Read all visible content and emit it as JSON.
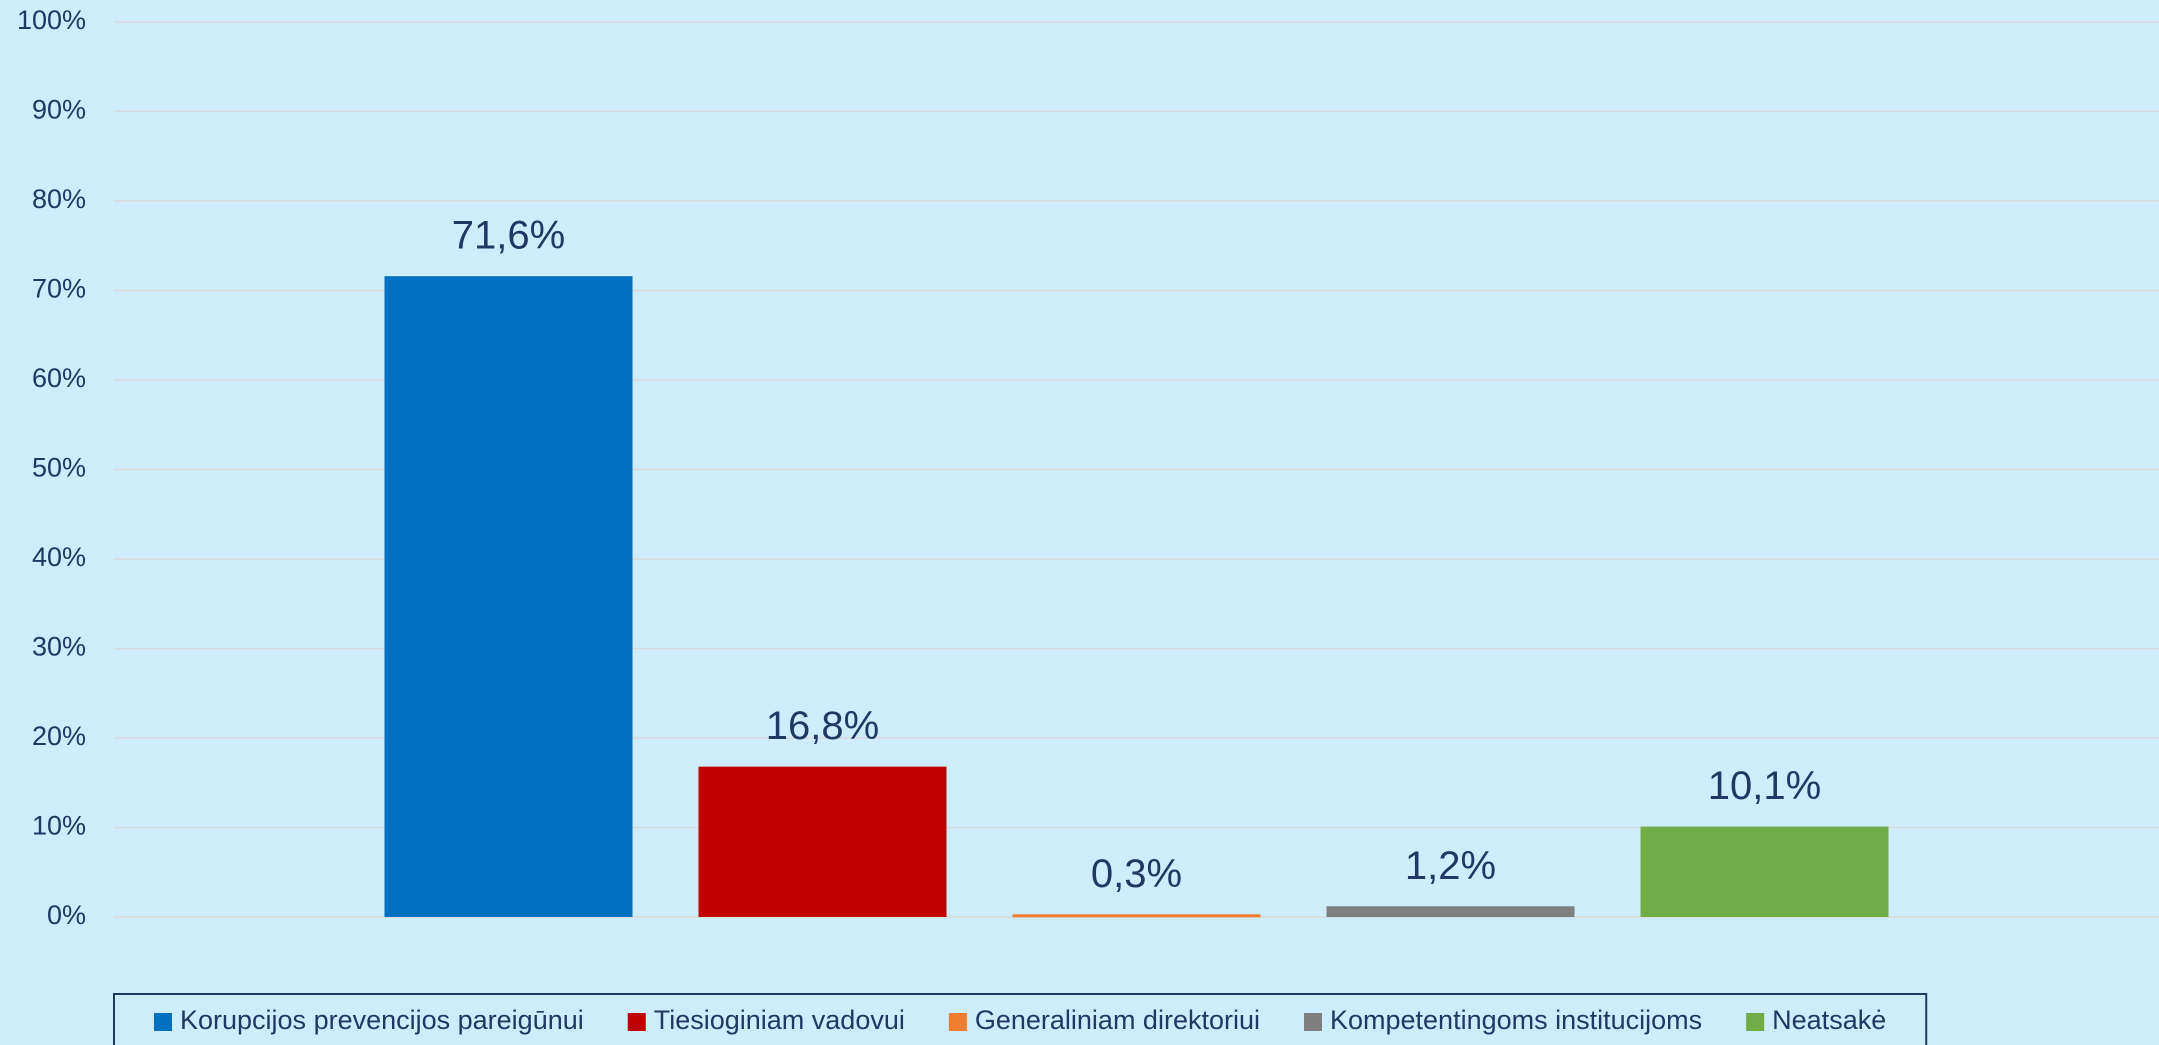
{
  "chart_data": {
    "type": "bar",
    "categories": [
      null
    ],
    "series": [
      {
        "name": "Korupcijos prevencijos pareigūnui",
        "color": "#0070c0",
        "values": [
          71.6
        ],
        "value_labels": [
          "71,6%"
        ]
      },
      {
        "name": "Tiesioginiam vadovui",
        "color": "#c00000",
        "values": [
          16.8
        ],
        "value_labels": [
          "16,8%"
        ]
      },
      {
        "name": "Generaliniam direktoriui",
        "color": "#ed7d31",
        "values": [
          0.3
        ],
        "value_labels": [
          "0,3%"
        ]
      },
      {
        "name": "Kompetentingoms institucijoms",
        "color": "#7f7f7f",
        "values": [
          1.2
        ],
        "value_labels": [
          "1,2%"
        ]
      },
      {
        "name": "Neatsakė",
        "color": "#70ad47",
        "values": [
          10.1
        ],
        "value_labels": [
          "10,1%"
        ]
      }
    ],
    "ylim": [
      0,
      100
    ],
    "yticks": [
      {
        "value": 0,
        "label": "0%"
      },
      {
        "value": 10,
        "label": "10%"
      },
      {
        "value": 20,
        "label": "20%"
      },
      {
        "value": 30,
        "label": "30%"
      },
      {
        "value": 40,
        "label": "40%"
      },
      {
        "value": 50,
        "label": "50%"
      },
      {
        "value": 60,
        "label": "60%"
      },
      {
        "value": 70,
        "label": "70%"
      },
      {
        "value": 80,
        "label": "80%"
      },
      {
        "value": 90,
        "label": "90%"
      },
      {
        "value": 100,
        "label": "100%"
      }
    ],
    "grid": true,
    "legend": "bottom"
  }
}
